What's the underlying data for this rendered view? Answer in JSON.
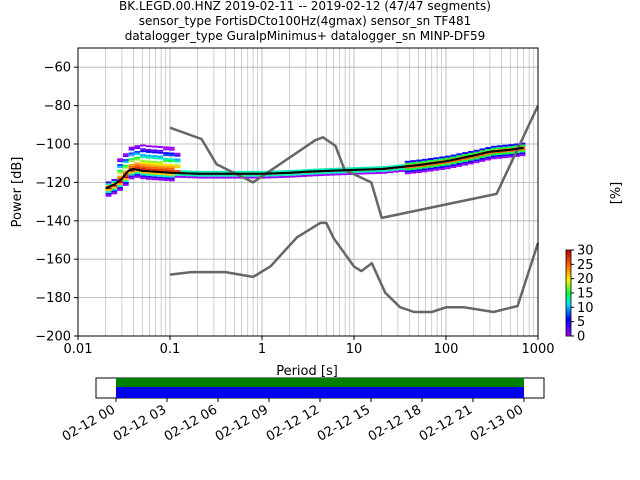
{
  "header": {
    "line1": "BK.LEGD.00.HNZ   2019-02-11 -- 2019-02-12  (47/47 segments)",
    "line2": "sensor_type FortisDCto100Hz(4gmax) sensor_sn TF481",
    "line3": "datalogger_type GuralpMinimus+ datalogger_sn MINP-DF59"
  },
  "chart_data": {
    "type": "line",
    "title": "BK.LEGD.00.HNZ   2019-02-11 -- 2019-02-12  (47/47 segments)",
    "xlabel": "Period [s]",
    "ylabel": "Power [dB]",
    "xscale": "log",
    "xlim": [
      0.01,
      1000
    ],
    "ylim": [
      -200,
      -50
    ],
    "grid": true,
    "x_ticks": [
      0.01,
      0.1,
      1,
      10,
      100,
      1000
    ],
    "x_tick_labels": [
      "0.01",
      "0.1",
      "1",
      "10",
      "100",
      "1000"
    ],
    "y_ticks": [
      -200,
      -180,
      -160,
      -140,
      -120,
      -100,
      -80,
      -60
    ],
    "y_tick_labels": [
      "−200",
      "−180",
      "−160",
      "−140",
      "−120",
      "−100",
      "−80",
      "−60"
    ],
    "series": [
      {
        "role": "noise-model-high",
        "color": "#666666",
        "x": [
          0.1,
          0.22,
          0.32,
          0.8,
          3.8,
          4.6,
          6.3,
          7.9,
          15.4,
          20,
          354.8,
          10000
        ],
        "y": [
          -91.5,
          -97.4,
          -110.5,
          -120,
          -98,
          -96.5,
          -101,
          -113.5,
          -120,
          -138.5,
          -126,
          -80
        ]
      },
      {
        "role": "noise-model-low",
        "color": "#666666",
        "x": [
          0.1,
          0.17,
          0.4,
          0.8,
          1.24,
          2.4,
          4.3,
          5,
          6,
          10,
          12,
          15.6,
          21.9,
          31.6,
          45,
          70,
          101,
          154,
          328,
          600,
          10000
        ],
        "y": [
          -168,
          -166.7,
          -166.7,
          -169.2,
          -163.7,
          -148.6,
          -141.1,
          -141.1,
          -149,
          -163.8,
          -166.2,
          -162.1,
          -177.5,
          -185,
          -187.5,
          -187.5,
          -185,
          -185,
          -187.5,
          -184.4,
          -151.5
        ]
      },
      {
        "role": "mode",
        "color": "#000000",
        "x": [
          0.02,
          0.025,
          0.03,
          0.035,
          0.04,
          0.05,
          0.07,
          0.1,
          0.2,
          0.5,
          1,
          2,
          3,
          5,
          10,
          20,
          50,
          100,
          200,
          300,
          500,
          700
        ],
        "y": [
          -123,
          -121,
          -118,
          -114,
          -113,
          -114,
          -114.5,
          -115,
          -115.5,
          -115.5,
          -115.5,
          -115,
          -114.5,
          -114,
          -113.5,
          -113,
          -111,
          -109,
          -106,
          -104,
          -103,
          -102
        ]
      }
    ],
    "histogram": {
      "role": "probability-density",
      "colorbar_label": "[%]",
      "colorbar_range": [
        0,
        30
      ],
      "colorbar_ticks": [
        0,
        5,
        10,
        15,
        20,
        25,
        30
      ]
    },
    "coverage": {
      "tick_labels": [
        "02-12 00",
        "02-12 03",
        "02-12 06",
        "02-12 09",
        "02-12 12",
        "02-12 15",
        "02-12 18",
        "02-12 21",
        "02-13 00"
      ],
      "span_start": "02-12 00",
      "span_end": "02-13 00",
      "colors": {
        "data": "#0000ee",
        "gaps_top": "#008000"
      }
    }
  }
}
